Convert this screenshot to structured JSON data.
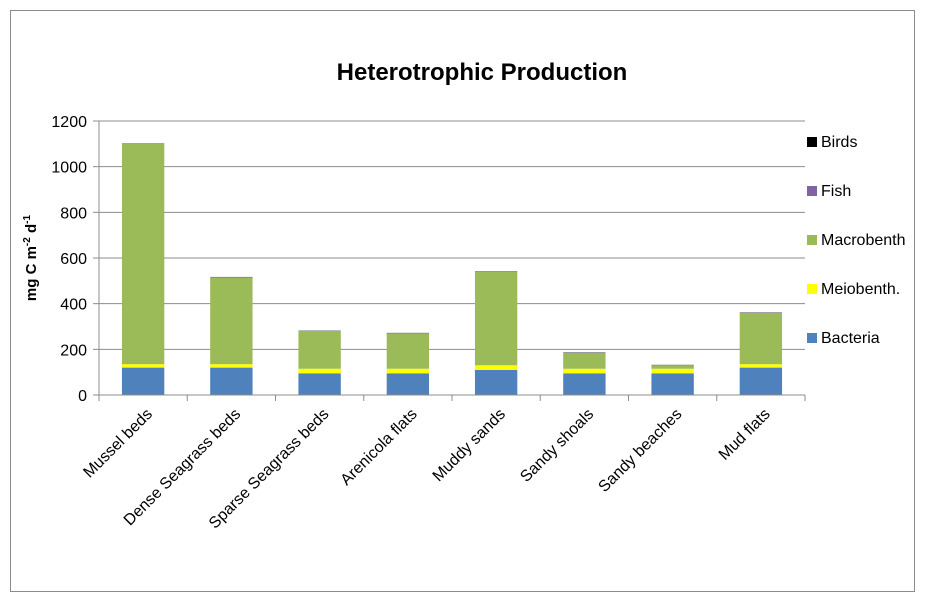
{
  "chart_data": {
    "type": "bar",
    "stacked": true,
    "title": "Heterotrophic Production",
    "ylabel_base": "mg C m",
    "ylabel_sup1": "-2",
    "ylabel_mid": " d",
    "ylabel_sup2": "-1",
    "xlabel": "",
    "ylim": [
      0,
      1200
    ],
    "yticks": [
      0,
      200,
      400,
      600,
      800,
      1000,
      1200
    ],
    "grid": true,
    "legend_position": "right",
    "categories": [
      "Mussel beds",
      "Dense Seagrass beds",
      "Sparse Seagrass beds",
      "Arenicola flats",
      "Muddy sands",
      "Sandy shoals",
      "Sandy beaches",
      "Mud flats"
    ],
    "series": [
      {
        "name": "Bacteria",
        "color": "#4f81bd",
        "values": [
          120,
          120,
          95,
          95,
          110,
          95,
          95,
          120
        ]
      },
      {
        "name": "Meiobenth.",
        "color": "#ffff00",
        "values": [
          15,
          15,
          20,
          20,
          20,
          20,
          20,
          15
        ]
      },
      {
        "name": "Macrobenth",
        "color": "#9bbb59",
        "values": [
          965,
          380,
          165,
          155,
          410,
          70,
          15,
          225
        ]
      },
      {
        "name": "Fish",
        "color": "#8064a2",
        "values": [
          1,
          1,
          1,
          1,
          1,
          1,
          1,
          1
        ]
      },
      {
        "name": "Birds",
        "color": "#000000",
        "values": [
          1,
          1,
          1,
          1,
          1,
          1,
          1,
          1
        ]
      }
    ]
  }
}
